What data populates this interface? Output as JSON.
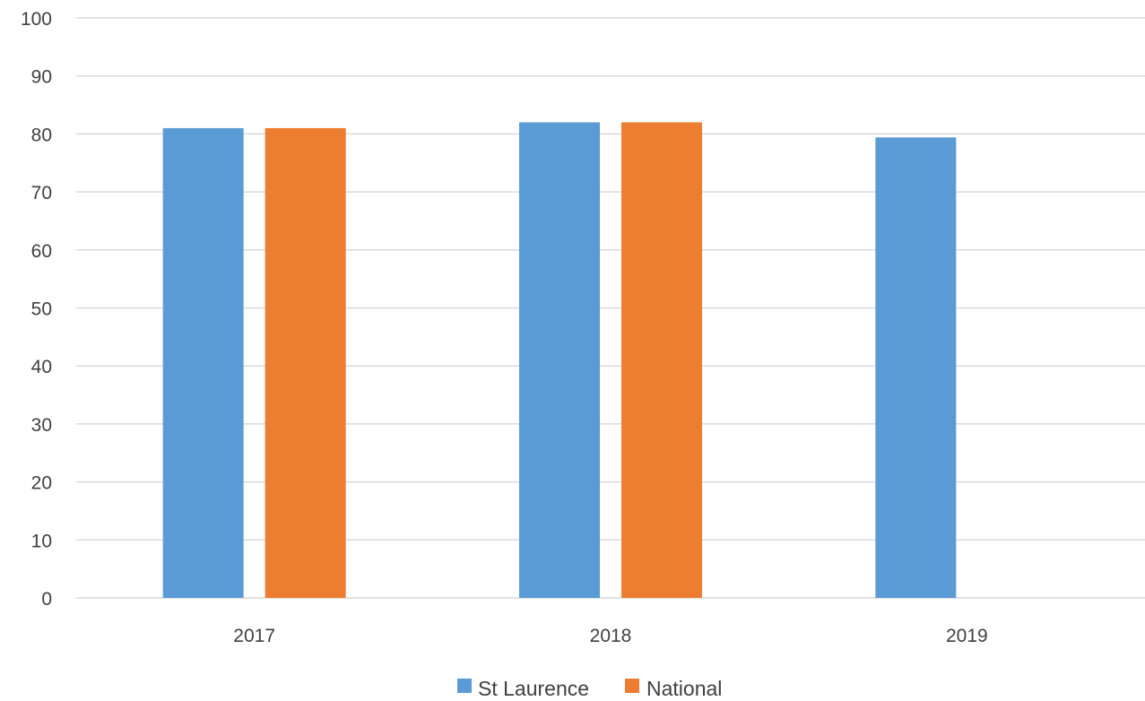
{
  "chart_data": {
    "type": "bar",
    "title": "",
    "xlabel": "",
    "ylabel": "",
    "categories": [
      "2017",
      "2018",
      "2019"
    ],
    "series": [
      {
        "name": "St Laurence",
        "color": "#5b9bd5",
        "values": [
          81,
          82,
          79.4
        ]
      },
      {
        "name": "National",
        "color": "#ed7d31",
        "values": [
          81,
          82,
          null
        ]
      }
    ],
    "ylim": [
      0,
      100
    ],
    "yticks": [
      0,
      10,
      20,
      30,
      40,
      50,
      60,
      70,
      80,
      90,
      100
    ],
    "grid": true,
    "legend_position": "bottom"
  }
}
